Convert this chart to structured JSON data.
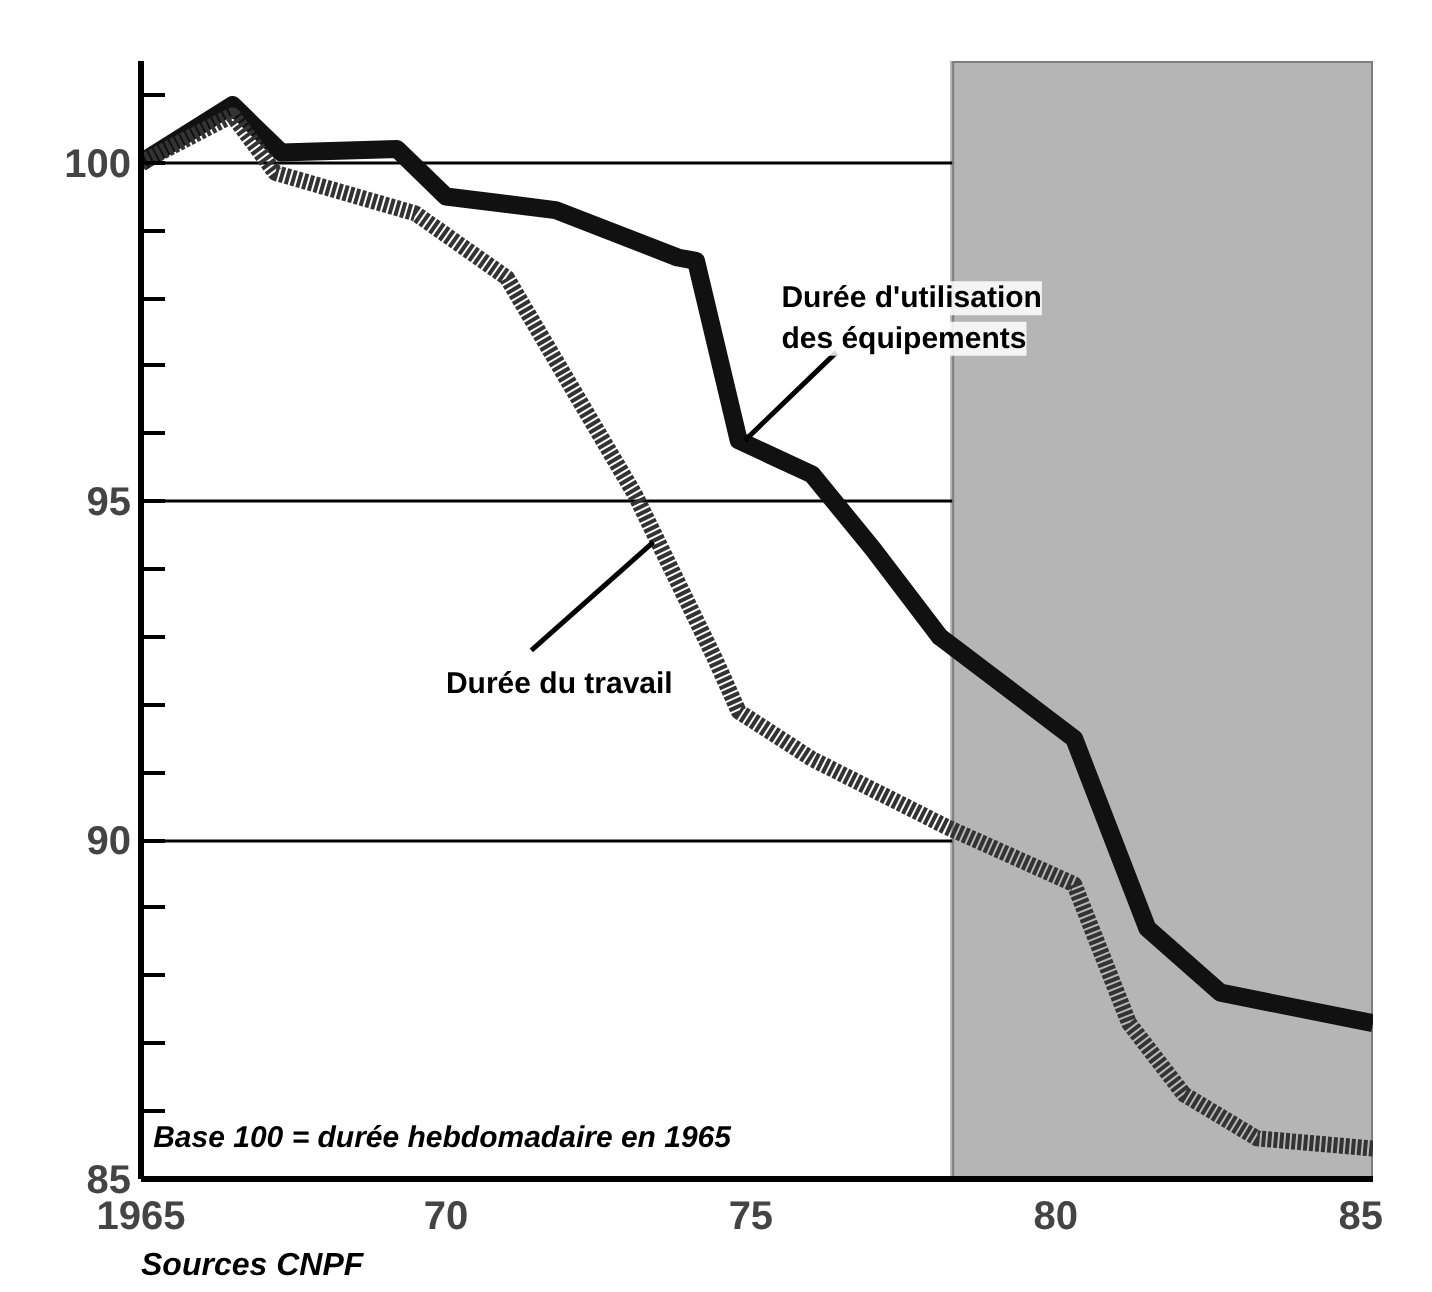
{
  "chart_data": {
    "type": "line",
    "xlim": [
      1965,
      1985.2
    ],
    "ylim": [
      85,
      101.5
    ],
    "xticks": [
      1965,
      {
        "value": 1970,
        "label": "70"
      },
      {
        "value": 1975,
        "label": "75"
      },
      {
        "value": 1980,
        "label": "80"
      },
      {
        "value": 1985,
        "label": "85"
      }
    ],
    "yticks": [
      85,
      {
        "value": 86,
        "label": null
      },
      {
        "value": 87,
        "label": null
      },
      {
        "value": 88,
        "label": null
      },
      {
        "value": 89,
        "label": null
      },
      90,
      {
        "value": 91,
        "label": null
      },
      {
        "value": 92,
        "label": null
      },
      {
        "value": 93,
        "label": null
      },
      {
        "value": 94,
        "label": null
      },
      95,
      {
        "value": 96,
        "label": null
      },
      {
        "value": 97,
        "label": null
      },
      {
        "value": 98,
        "label": null
      },
      {
        "value": 99,
        "label": null
      },
      100,
      {
        "value": 101,
        "label": null
      }
    ],
    "grid": "y",
    "series": [
      {
        "name": "Durée d'utilisation des équipements",
        "color": "#111111",
        "line_style": "solid",
        "x": [
          1965,
          1966.5,
          1967.3,
          1969.2,
          1970,
          1971.8,
          1973.8,
          1974.1,
          1974.8,
          1976,
          1977,
          1978.1,
          1980.3,
          1981.5,
          1982.7,
          1985.2
        ],
        "values": [
          100,
          100.85,
          100.15,
          100.2,
          99.5,
          99.3,
          98.6,
          98.55,
          95.9,
          95.4,
          94.3,
          93,
          91.5,
          88.7,
          87.75,
          87.3
        ]
      },
      {
        "name": "Durée du travail",
        "color": "#333333",
        "line_style": "dotted",
        "x": [
          1965,
          1966.5,
          1967.2,
          1969.5,
          1971,
          1973.1,
          1974.4,
          1974.8,
          1976,
          1978.2,
          1980.3,
          1981.2,
          1982.1,
          1983.3,
          1985.2
        ],
        "values": [
          100,
          100.7,
          99.85,
          99.25,
          98.3,
          95.1,
          92.7,
          91.9,
          91.2,
          90.2,
          89.35,
          87.3,
          86.25,
          85.6,
          85.45
        ]
      }
    ],
    "bands": [
      {
        "axis": "x",
        "from": 1978.3,
        "to": 1985.2,
        "color": "#b5b5b5"
      }
    ],
    "annotations": [
      "Base 100 = durée hebdomadaire en 1965",
      "Sources CNPF"
    ]
  }
}
